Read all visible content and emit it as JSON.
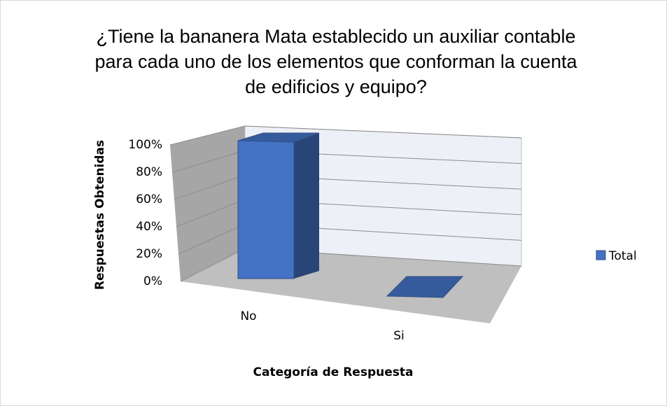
{
  "chart_data": {
    "type": "bar3d",
    "title": "¿Tiene la bananera Mata establecido un auxiliar contable para cada uno de los elementos que conforman la cuenta de edificios y equipo?",
    "categories": [
      "No",
      "Si"
    ],
    "series": [
      {
        "name": "Total",
        "color": "#4472c4",
        "values": [
          100,
          0
        ]
      }
    ],
    "ylim": [
      0,
      100
    ],
    "yticks": [
      {
        "value": 0,
        "label": "0%"
      },
      {
        "value": 20,
        "label": "20%"
      },
      {
        "value": 40,
        "label": "40%"
      },
      {
        "value": 60,
        "label": "60%"
      },
      {
        "value": 80,
        "label": "80%"
      },
      {
        "value": 100,
        "label": "100%"
      }
    ],
    "x_label": "Categoría de Respuesta",
    "y_label": "Respuestas Obtenidas",
    "grid": true,
    "legend": "right"
  }
}
